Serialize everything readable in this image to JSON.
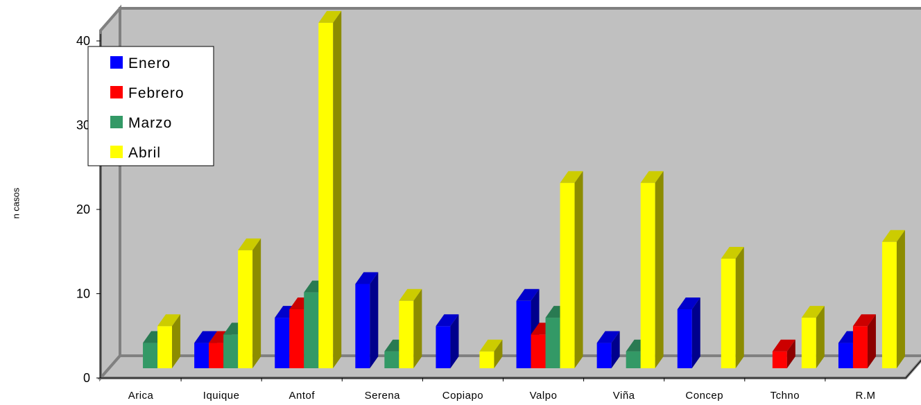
{
  "chart_data": {
    "type": "bar",
    "title": "",
    "xlabel": "",
    "ylabel": "n casos",
    "ylim": [
      0,
      40
    ],
    "yticks": [
      "0",
      "10",
      "20",
      "30",
      "40"
    ],
    "grid": false,
    "legend_position": "top-left",
    "categories": [
      "Arica",
      "Iquique",
      "Antof",
      "Serena",
      "Copiapo",
      "Valpo",
      "Viña",
      "Concep",
      "Tchno",
      "R.M"
    ],
    "series": [
      {
        "name": "Enero",
        "color": "#0000ff",
        "values": [
          0,
          3,
          6,
          10,
          5,
          8,
          3,
          7,
          0,
          3
        ]
      },
      {
        "name": "Febrero",
        "color": "#ff0000",
        "values": [
          0,
          3,
          7,
          0,
          0,
          4,
          0,
          0,
          2,
          5
        ]
      },
      {
        "name": "Marzo",
        "color": "#339966",
        "values": [
          3,
          4,
          9,
          2,
          0,
          6,
          2,
          0,
          0,
          0
        ]
      },
      {
        "name": "Abril",
        "color": "#ffff00",
        "values": [
          5,
          14,
          41,
          8,
          2,
          22,
          22,
          13,
          6,
          15
        ]
      }
    ],
    "colors": {
      "wall": "#c0c0c0",
      "wall_edge": "#808080",
      "floor": "#c0c0c0"
    }
  }
}
